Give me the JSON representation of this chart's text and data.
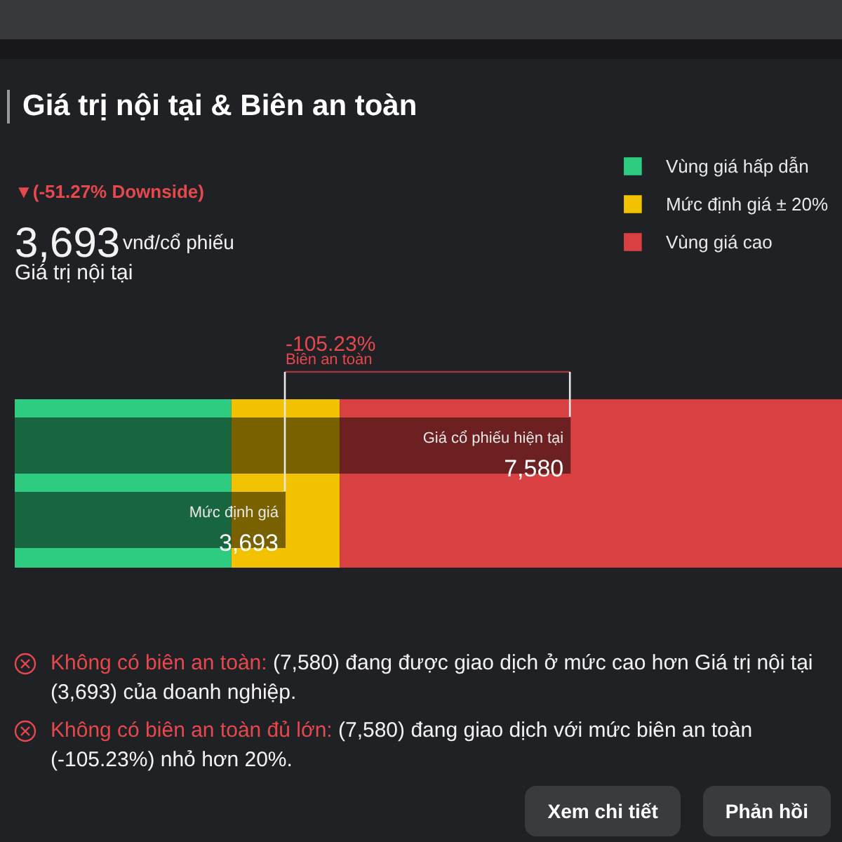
{
  "chart_data": {
    "type": "bar",
    "orientation": "horizontal",
    "title": "Giá trị nội tại & Biên an toàn",
    "categories": [
      "Giá cổ phiếu hiện tại",
      "Mức định giá"
    ],
    "values": [
      7580,
      3693
    ],
    "value_labels": [
      "7,580",
      "3,693"
    ],
    "color": "#000000",
    "xlim": [
      0,
      11290
    ],
    "tick_labels": false,
    "legend": "top right",
    "bands": [
      {
        "axis": "x",
        "from": 0,
        "to": 2954,
        "label": "Vùng giá hấp dẫn",
        "color": "#2ecc80"
      },
      {
        "axis": "x",
        "from": 2954,
        "to": 4432,
        "label": "Mức định giá ± 20%",
        "color": "#f2c200"
      },
      {
        "axis": "x",
        "from": 4432,
        "to": 11290,
        "label": "Vùng giá cao",
        "color": "#d94042"
      }
    ],
    "annotations": [
      "▼(-51.27% Downside)",
      "3,693",
      "vnđ/cổ phiếu",
      "Giá trị nội tại",
      "-105.23%",
      "Biên an toàn",
      "Không có biên an toàn:",
      "(7,580) đang được giao dịch ở mức cao hơn Giá trị nội tại (3,693) của doanh nghiệp.",
      "Không có biên an toàn đủ lớn:",
      "(7,580) đang giao dịch với mức biên an toàn (-105.23%) nhỏ hơn 20%.",
      "Xem chi tiết",
      "Phản hồi"
    ]
  }
}
